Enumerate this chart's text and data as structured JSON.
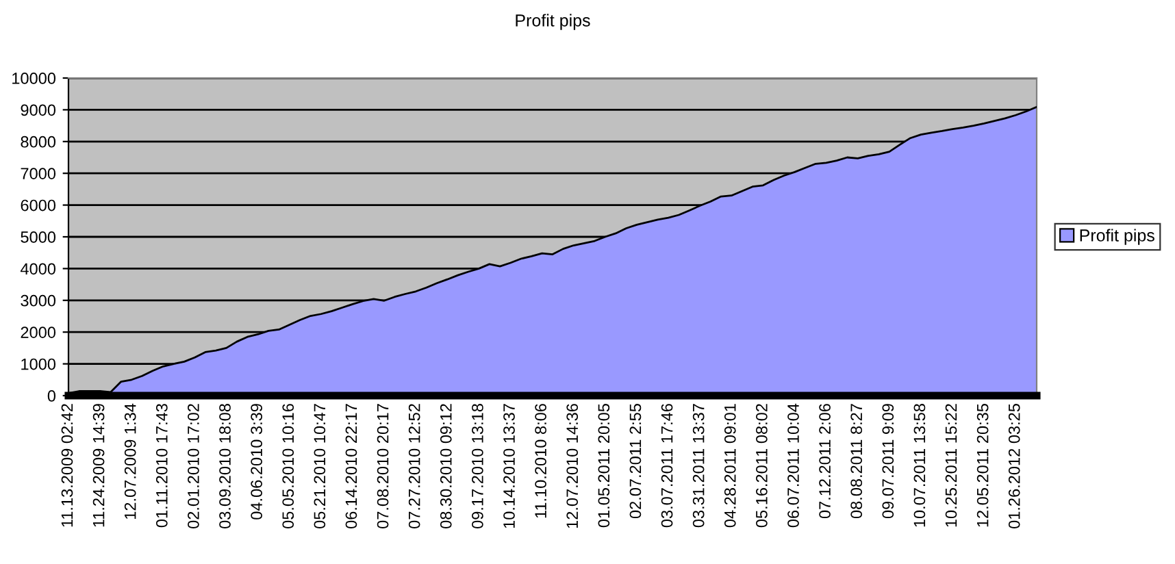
{
  "chart_data": {
    "type": "area",
    "title": "Profit pips",
    "categories": [
      "11.13.2009 02:42",
      null,
      null,
      "11.24.2009 14:39",
      null,
      null,
      "12.07.2009 1:34",
      null,
      null,
      "01.11.2010 17:43",
      null,
      null,
      "02.01.2010 17:02",
      null,
      null,
      "03.09.2010 18:08",
      null,
      null,
      "04.06.2010 3:39",
      null,
      null,
      "05.05.2010 10:16",
      null,
      null,
      "05.21.2010 10:47",
      null,
      null,
      "06.14.2010 22:17",
      null,
      null,
      "07.08.2010 20:17",
      null,
      null,
      "07.27.2010 12:52",
      null,
      null,
      "08.30.2010 09:12",
      null,
      null,
      "09.17.2010 13:18",
      null,
      null,
      "10.14.2010 13:37",
      null,
      null,
      "11.10.2010 8:06",
      null,
      null,
      "12.07.2010 14:36",
      null,
      null,
      "01.05.2011 20:05",
      null,
      null,
      "02.07.2011 2:55",
      null,
      null,
      "03.07.2011 17:46",
      null,
      null,
      "03.31.2011 13:37",
      null,
      null,
      "04.28.2011 09:01",
      null,
      null,
      "05.16.2011 08:02",
      null,
      null,
      "06.07.2011 10:04",
      null,
      null,
      "07.12.2011 2:06",
      null,
      null,
      "08.08.2011 8:27",
      null,
      null,
      "09.07.2011 9:09",
      null,
      null,
      "10.07.2011 13:58",
      null,
      null,
      "10.25.2011 15:22",
      null,
      null,
      "12.05.2011 20:35",
      null,
      null,
      "01.26.2012 03:25",
      null,
      null
    ],
    "series": [
      {
        "name": "Profit pips",
        "color": "#9999ff",
        "values": [
          80,
          140,
          140,
          140,
          110,
          440,
          500,
          620,
          780,
          920,
          1000,
          1070,
          1200,
          1370,
          1420,
          1500,
          1700,
          1850,
          1930,
          2040,
          2080,
          2230,
          2380,
          2510,
          2570,
          2660,
          2770,
          2880,
          2980,
          3040,
          2990,
          3110,
          3200,
          3280,
          3400,
          3540,
          3660,
          3790,
          3900,
          4000,
          4140,
          4070,
          4180,
          4310,
          4390,
          4480,
          4450,
          4620,
          4730,
          4800,
          4870,
          5000,
          5110,
          5270,
          5380,
          5460,
          5540,
          5600,
          5690,
          5830,
          5980,
          6110,
          6270,
          6300,
          6440,
          6580,
          6620,
          6790,
          6930,
          7040,
          7170,
          7300,
          7330,
          7400,
          7500,
          7470,
          7550,
          7600,
          7680,
          7900,
          8110,
          8220,
          8280,
          8330,
          8390,
          8440,
          8500,
          8570,
          8650,
          8730,
          8830,
          8950,
          9090
        ]
      }
    ],
    "ylim": [
      0,
      10000
    ],
    "yticks": [
      0,
      1000,
      2000,
      3000,
      4000,
      5000,
      6000,
      7000,
      8000,
      9000,
      10000
    ],
    "grid": "y",
    "legend": "right"
  }
}
